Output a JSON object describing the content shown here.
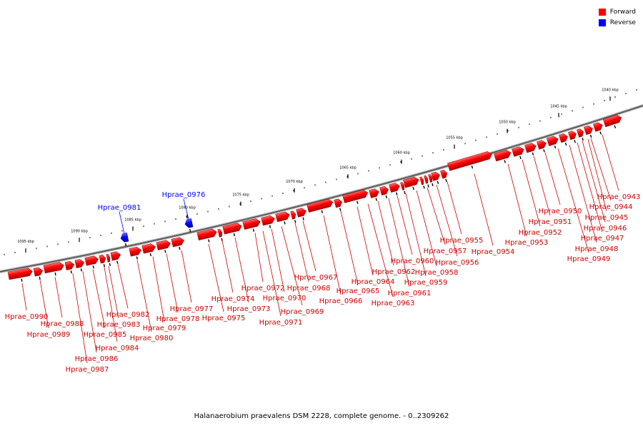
{
  "legend": {
    "forward_label": "Forward",
    "reverse_label": "Reverse",
    "forward_color": "#ff0000",
    "reverse_color": "#0000ff"
  },
  "caption": "Halanaerobium praevalens DSM 2228, complete genome. - 0..2309262",
  "scale_ticks": [
    {
      "label": "1095 kbp"
    },
    {
      "label": "1090 kbp"
    },
    {
      "label": "1085 kbp"
    },
    {
      "label": "1080 kbp"
    },
    {
      "label": "1075 kbp"
    },
    {
      "label": "1070 kbp"
    },
    {
      "label": "1065 kbp"
    },
    {
      "label": "1060 kbp"
    },
    {
      "label": "1055 kbp"
    },
    {
      "label": "1050 kbp"
    },
    {
      "label": "1045 kbp"
    },
    {
      "label": "1040 kbp"
    }
  ],
  "genes": [
    {
      "name": "Hprae_0990",
      "strand": "forward"
    },
    {
      "name": "Hprae_0989",
      "strand": "forward"
    },
    {
      "name": "Hprae_0988",
      "strand": "forward"
    },
    {
      "name": "Hprae_0987",
      "strand": "forward"
    },
    {
      "name": "Hprae_0986",
      "strand": "forward"
    },
    {
      "name": "Hprae_0985",
      "strand": "forward"
    },
    {
      "name": "Hprae_0984",
      "strand": "forward"
    },
    {
      "name": "Hprae_0983",
      "strand": "forward"
    },
    {
      "name": "Hprae_0982",
      "strand": "forward"
    },
    {
      "name": "Hprae_0981",
      "strand": "reverse"
    },
    {
      "name": "Hprae_0980",
      "strand": "forward"
    },
    {
      "name": "Hprae_0979",
      "strand": "forward"
    },
    {
      "name": "Hprae_0978",
      "strand": "forward"
    },
    {
      "name": "Hprae_0977",
      "strand": "forward"
    },
    {
      "name": "Hprae_0976",
      "strand": "reverse"
    },
    {
      "name": "Hprae_0975",
      "strand": "forward"
    },
    {
      "name": "Hprae_0974",
      "strand": "forward"
    },
    {
      "name": "Hprae_0973",
      "strand": "forward"
    },
    {
      "name": "Hprae_0972",
      "strand": "forward"
    },
    {
      "name": "Hprae_0971",
      "strand": "forward"
    },
    {
      "name": "Hprae_0970",
      "strand": "forward"
    },
    {
      "name": "Hprae_0969",
      "strand": "forward"
    },
    {
      "name": "Hprae_0968",
      "strand": "forward"
    },
    {
      "name": "Hprae_0967",
      "strand": "forward"
    },
    {
      "name": "Hprae_0966",
      "strand": "forward"
    },
    {
      "name": "Hprae_0965",
      "strand": "forward"
    },
    {
      "name": "Hprae_0964",
      "strand": "forward"
    },
    {
      "name": "Hprae_0963",
      "strand": "forward"
    },
    {
      "name": "Hprae_0962",
      "strand": "forward"
    },
    {
      "name": "Hprae_0961",
      "strand": "forward"
    },
    {
      "name": "Hprae_0960",
      "strand": "forward"
    },
    {
      "name": "Hprae_0959",
      "strand": "forward"
    },
    {
      "name": "Hprae_0958",
      "strand": "forward"
    },
    {
      "name": "Hprae_0957",
      "strand": "forward"
    },
    {
      "name": "Hprae_0956",
      "strand": "forward"
    },
    {
      "name": "Hprae_0955",
      "strand": "forward"
    },
    {
      "name": "Hprae_0954",
      "strand": "forward"
    },
    {
      "name": "Hprae_0953",
      "strand": "forward"
    },
    {
      "name": "Hprae_0952",
      "strand": "forward"
    },
    {
      "name": "Hprae_0951",
      "strand": "forward"
    },
    {
      "name": "Hprae_0950",
      "strand": "forward"
    },
    {
      "name": "Hprae_0949",
      "strand": "forward"
    },
    {
      "name": "Hprae_0948",
      "strand": "forward"
    },
    {
      "name": "Hprae_0947",
      "strand": "forward"
    },
    {
      "name": "Hprae_0946",
      "strand": "forward"
    },
    {
      "name": "Hprae_0945",
      "strand": "forward"
    },
    {
      "name": "Hprae_0944",
      "strand": "forward"
    },
    {
      "name": "Hprae_0943",
      "strand": "forward"
    }
  ]
}
